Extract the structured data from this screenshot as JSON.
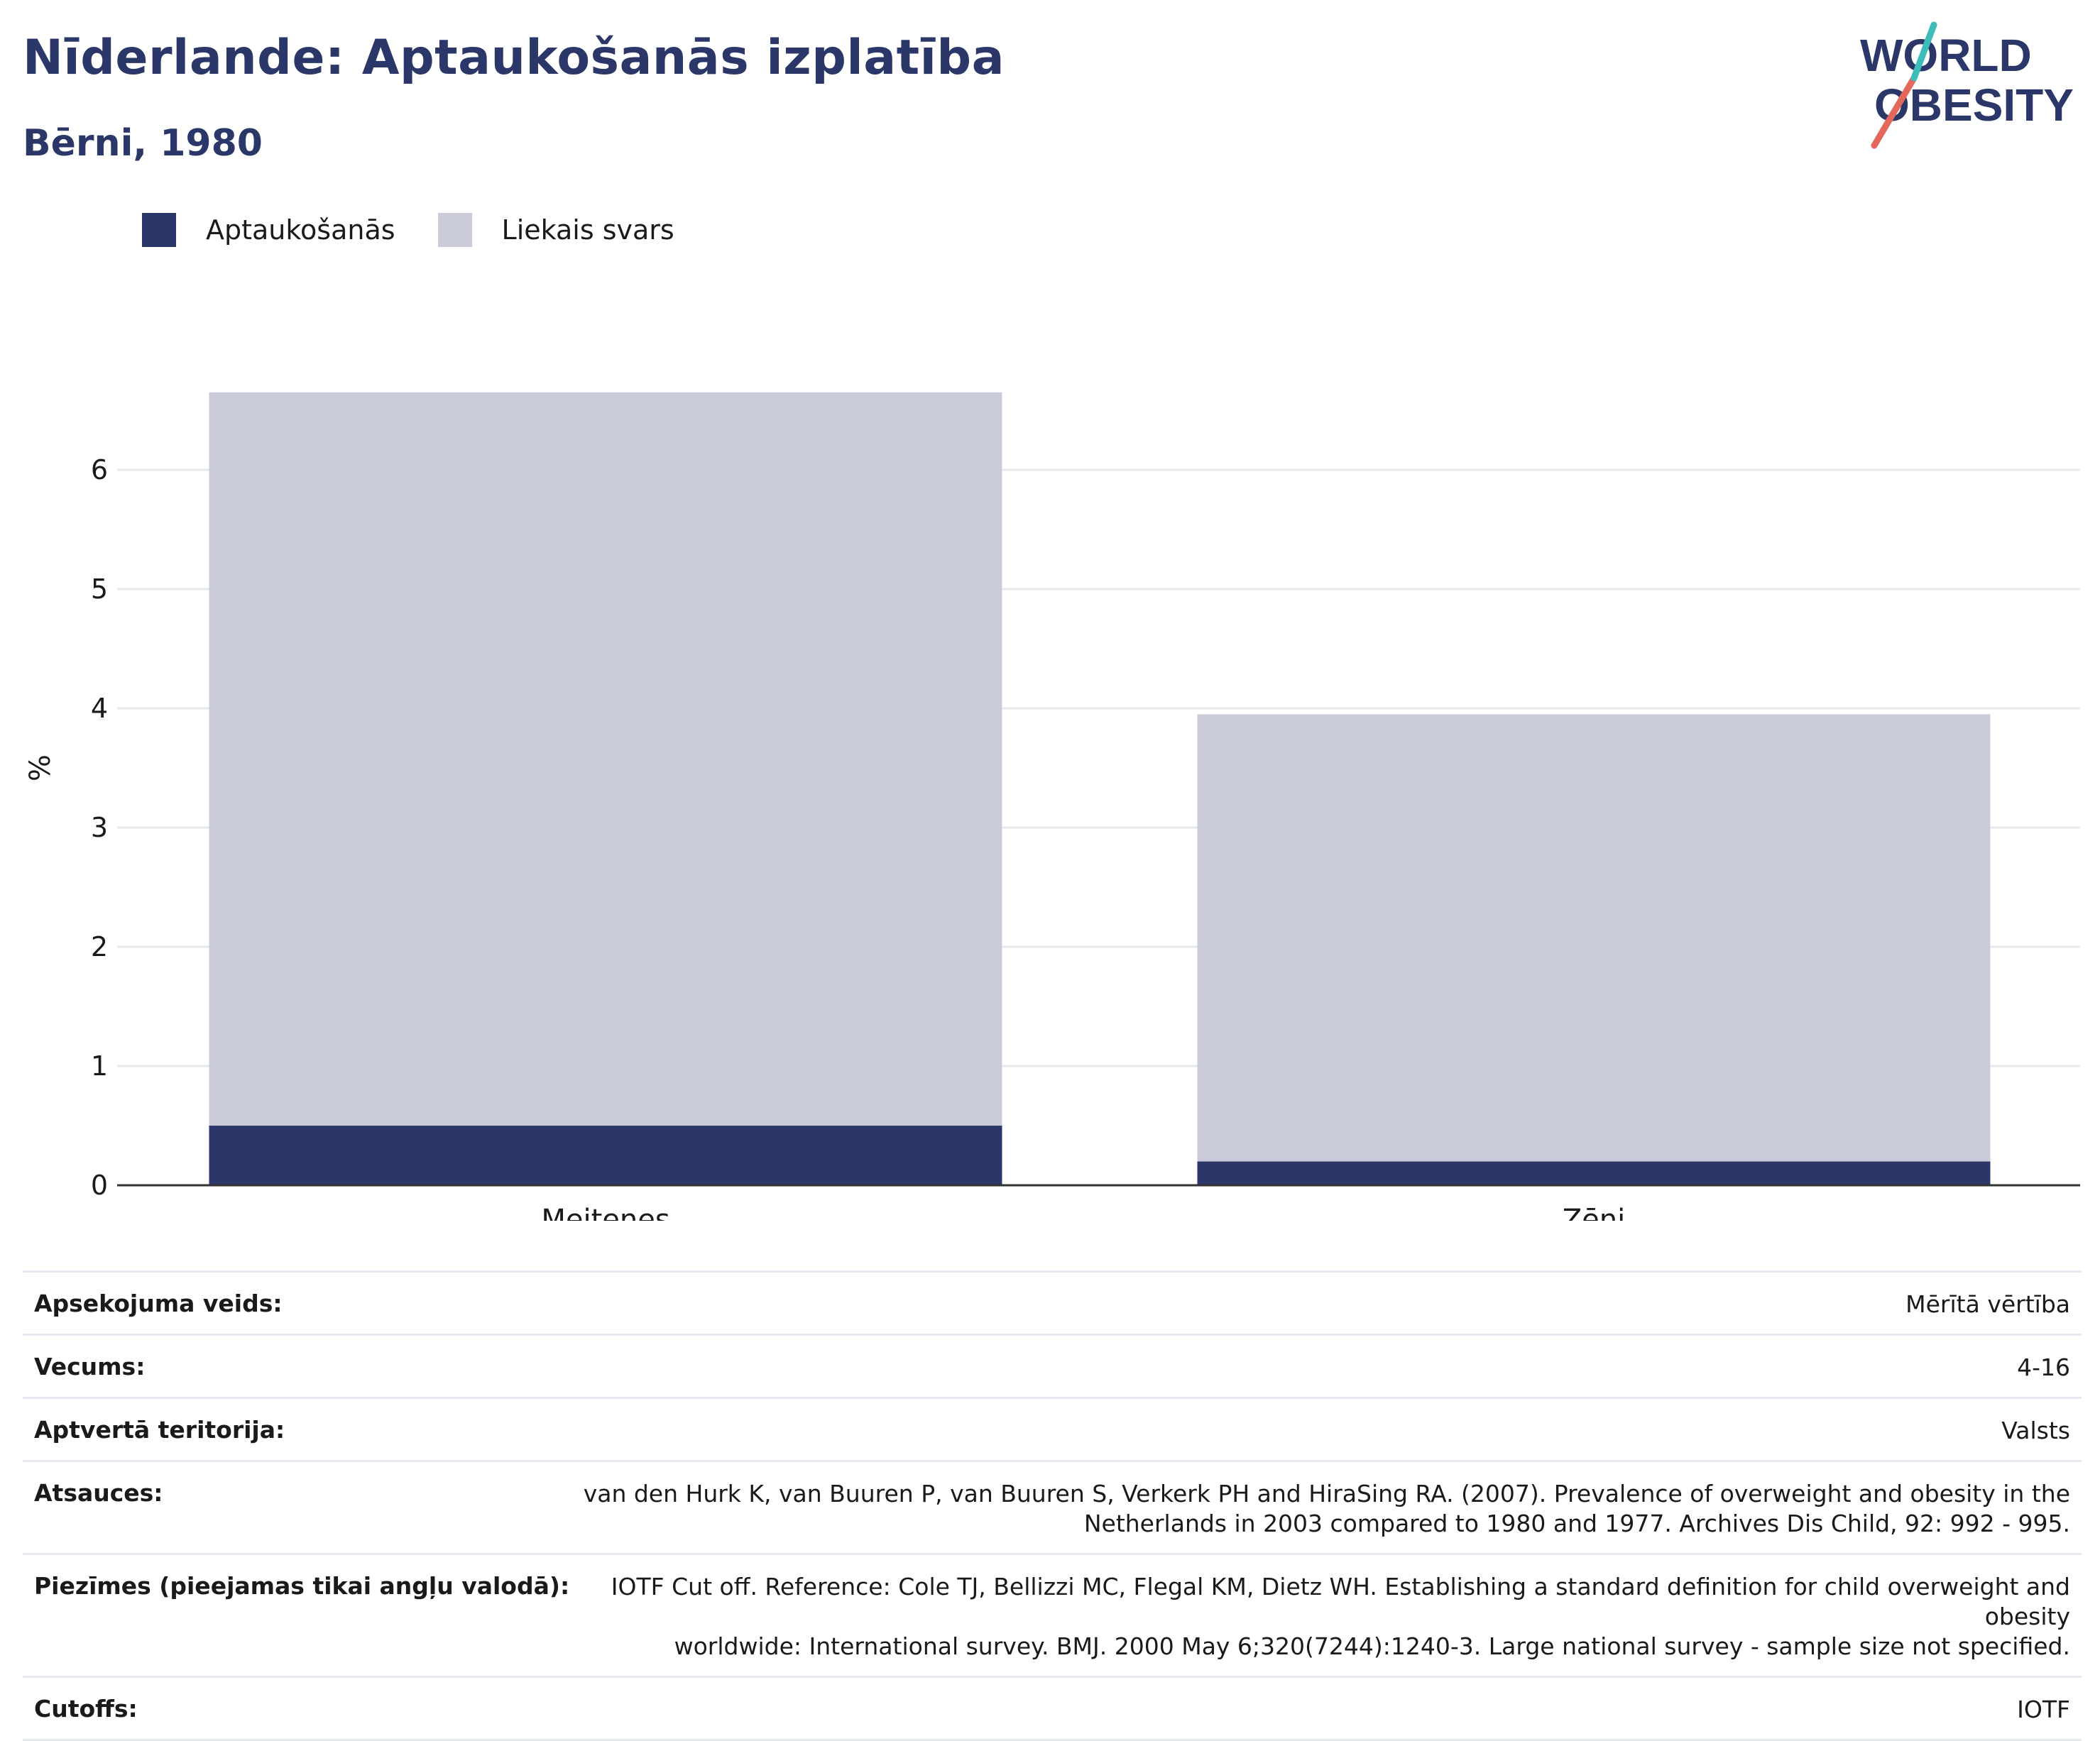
{
  "header": {
    "title": "Nīderlande: Aptaukošanās izplatība",
    "subtitle": "Bērni, 1980",
    "logo_line1": "WORLD",
    "logo_line2": "OBESITY"
  },
  "legend": [
    {
      "label": "Aptaukošanās",
      "color": "#2b3768"
    },
    {
      "label": "Liekais svars",
      "color": "#c9ccd8"
    }
  ],
  "chart_data": {
    "type": "bar",
    "stacked": true,
    "categories": [
      "Meitenes",
      "Zēni"
    ],
    "series": [
      {
        "name": "Aptaukošanās",
        "values": [
          0.5,
          0.2
        ],
        "color": "#2b3768"
      },
      {
        "name": "Liekais svars",
        "values": [
          6.15,
          3.75
        ],
        "color": "#c9ccd8"
      }
    ],
    "ylabel": "%",
    "ylim": [
      0,
      7
    ],
    "yticks": [
      0,
      1,
      2,
      3,
      4,
      5,
      6
    ],
    "grid": true,
    "legend_position": "top-left"
  },
  "meta": [
    {
      "label": "Apsekojuma veids:",
      "value": "Mērītā vērtība"
    },
    {
      "label": "Vecums:",
      "value": "4-16"
    },
    {
      "label": "Aptvertā teritorija:",
      "value": "Valsts"
    },
    {
      "label": "Atsauces:",
      "value_lines": [
        "van den Hurk K, van Buuren P, van Buuren S, Verkerk PH and HiraSing RA. (2007). Prevalence of overweight and obesity in the",
        "Netherlands in 2003 compared to 1980 and 1977. Archives Dis Child, 92: 992 - 995."
      ]
    },
    {
      "label": "Piezīmes (pieejamas tikai angļu valodā):",
      "value_lines": [
        "IOTF Cut off. Reference: Cole TJ, Bellizzi MC, Flegal KM, Dietz WH. Establishing a standard definition for child overweight and obesity",
        "worldwide: International survey. BMJ. 2000 May 6;320(7244):1240-3. Large national survey - sample size not specified."
      ]
    },
    {
      "label": "Cutoffs:",
      "value": "IOTF"
    }
  ]
}
